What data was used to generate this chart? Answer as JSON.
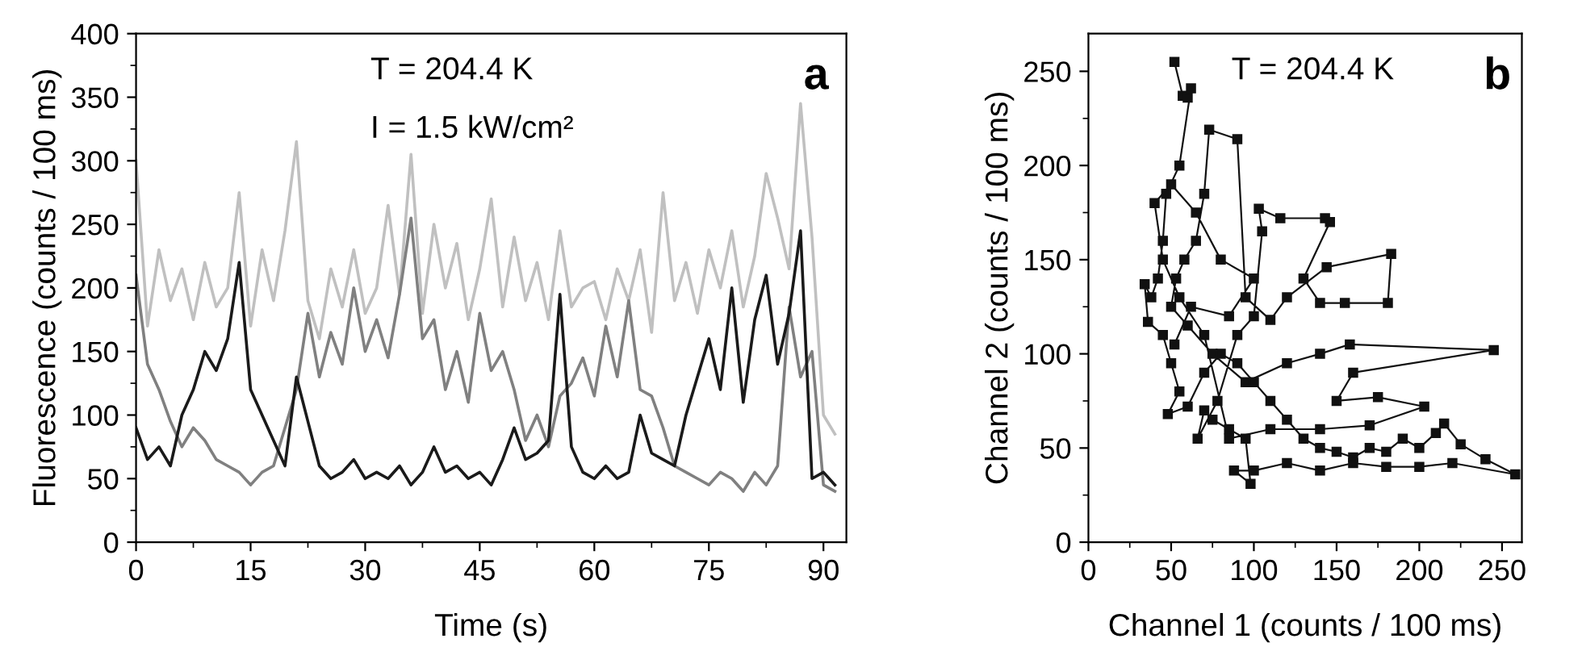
{
  "chart_data": [
    {
      "type": "line",
      "xlabel": "Time (s)",
      "ylabel": "Fluorescence (counts / 100 ms)",
      "xlim": [
        0,
        93
      ],
      "ylim": [
        0,
        400
      ],
      "xticks": [
        0,
        15,
        30,
        45,
        60,
        75,
        90
      ],
      "yticks": [
        0,
        50,
        100,
        150,
        200,
        250,
        300,
        350,
        400
      ],
      "grid": false,
      "legend": false,
      "annotations": [
        "a",
        "T = 204.4 K",
        "I = 1.5 kW/cm²"
      ],
      "x": [
        0,
        1.5,
        3,
        4.5,
        6,
        7.5,
        9,
        10.5,
        12,
        13.5,
        15,
        16.5,
        18,
        19.5,
        21,
        22.5,
        24,
        25.5,
        27,
        28.5,
        30,
        31.5,
        33,
        34.5,
        36,
        37.5,
        39,
        40.5,
        42,
        43.5,
        45,
        46.5,
        48,
        49.5,
        51,
        52.5,
        54,
        55.5,
        57,
        58.5,
        60,
        61.5,
        63,
        64.5,
        66,
        67.5,
        69,
        70.5,
        72,
        73.5,
        75,
        76.5,
        78,
        79.5,
        81,
        82.5,
        84,
        85.5,
        87,
        88.5,
        90,
        91.5
      ],
      "series": [
        {
          "color": "#c0c0c0",
          "values": [
            300,
            170,
            230,
            190,
            215,
            175,
            220,
            185,
            200,
            275,
            170,
            230,
            190,
            245,
            315,
            190,
            160,
            215,
            185,
            230,
            180,
            200,
            265,
            195,
            305,
            180,
            250,
            200,
            235,
            175,
            215,
            270,
            185,
            240,
            190,
            220,
            175,
            245,
            185,
            200,
            205,
            175,
            215,
            190,
            230,
            165,
            275,
            190,
            220,
            180,
            230,
            200,
            245,
            185,
            225,
            290,
            255,
            215,
            345,
            240,
            100,
            85
          ]
        },
        {
          "color": "#808080",
          "values": [
            210,
            140,
            120,
            95,
            75,
            90,
            80,
            65,
            60,
            55,
            45,
            55,
            60,
            90,
            120,
            180,
            130,
            165,
            140,
            200,
            150,
            175,
            145,
            195,
            255,
            160,
            175,
            120,
            150,
            110,
            180,
            135,
            150,
            120,
            80,
            100,
            75,
            115,
            125,
            145,
            115,
            170,
            130,
            190,
            120,
            115,
            90,
            60,
            55,
            50,
            45,
            55,
            50,
            40,
            55,
            45,
            60,
            185,
            130,
            150,
            45,
            40
          ]
        },
        {
          "color": "#1a1a1a",
          "values": [
            90,
            65,
            75,
            60,
            100,
            120,
            150,
            135,
            160,
            220,
            120,
            100,
            80,
            60,
            130,
            95,
            60,
            50,
            55,
            65,
            50,
            55,
            50,
            60,
            45,
            55,
            75,
            55,
            60,
            50,
            55,
            45,
            65,
            90,
            65,
            70,
            80,
            195,
            75,
            55,
            50,
            60,
            50,
            55,
            100,
            70,
            65,
            60,
            100,
            130,
            160,
            120,
            200,
            110,
            175,
            210,
            140,
            180,
            245,
            50,
            55,
            45
          ]
        }
      ]
    },
    {
      "type": "line",
      "marker": "square",
      "xlabel": "Channel 1 (counts / 100 ms)",
      "ylabel": "Channel 2 (counts / 100 ms)",
      "xlim": [
        0,
        262
      ],
      "ylim": [
        0,
        270
      ],
      "xticks": [
        0,
        50,
        100,
        150,
        200,
        250
      ],
      "yticks": [
        0,
        50,
        100,
        150,
        200,
        250
      ],
      "grid": false,
      "legend": false,
      "annotations": [
        "b",
        "T = 204.4 K"
      ],
      "series": [
        {
          "color": "#111111",
          "x": [
            52,
            57,
            60,
            62,
            55,
            47,
            45,
            42,
            38,
            34,
            36,
            45,
            50,
            55,
            48,
            60,
            70,
            80,
            90,
            100,
            110,
            120,
            130,
            140,
            150,
            160,
            170,
            180,
            190,
            200,
            210,
            215,
            225,
            240,
            258,
            220,
            200,
            180,
            160,
            140,
            120,
            100,
            88,
            98,
            95,
            85,
            75,
            70,
            66,
            78,
            90,
            100,
            105,
            103,
            116,
            143,
            146,
            130,
            140,
            155,
            181,
            183,
            144,
            120,
            110,
            95,
            90,
            73,
            70,
            65,
            58,
            53,
            50,
            60,
            75,
            95,
            120,
            140,
            158,
            245,
            160,
            150,
            175,
            203,
            170,
            140,
            110,
            85,
            70,
            55,
            45,
            40,
            50,
            65,
            80,
            100,
            85,
            62,
            52
          ],
          "values": [
            255,
            237,
            236,
            241,
            200,
            185,
            160,
            140,
            130,
            137,
            117,
            110,
            95,
            80,
            68,
            72,
            90,
            100,
            95,
            85,
            75,
            65,
            55,
            50,
            48,
            45,
            50,
            48,
            55,
            50,
            58,
            63,
            52,
            44,
            36,
            42,
            40,
            40,
            42,
            38,
            42,
            38,
            38,
            31,
            55,
            60,
            65,
            70,
            55,
            75,
            110,
            120,
            165,
            177,
            172,
            172,
            170,
            140,
            127,
            127,
            127,
            153,
            146,
            130,
            118,
            130,
            214,
            219,
            185,
            160,
            150,
            140,
            125,
            115,
            100,
            85,
            95,
            100,
            105,
            102,
            90,
            75,
            77,
            72,
            62,
            60,
            60,
            55,
            110,
            130,
            150,
            180,
            190,
            175,
            150,
            140,
            120,
            125,
            105
          ]
        }
      ]
    }
  ]
}
